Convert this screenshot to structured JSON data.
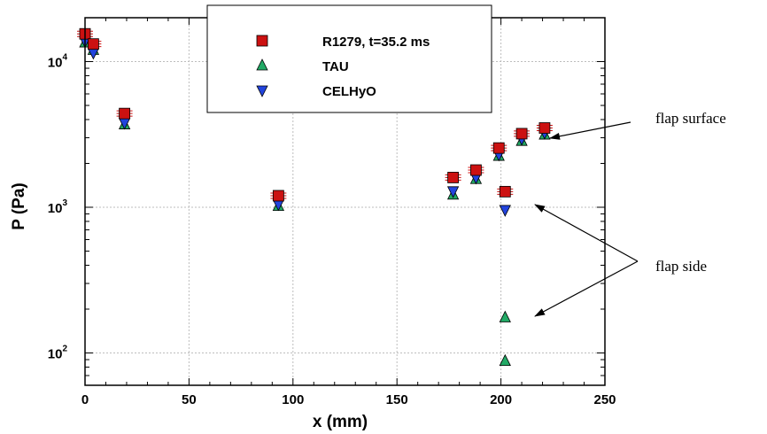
{
  "chart_data": {
    "type": "scatter",
    "xlabel": "x  (mm)",
    "ylabel": "P  (Pa)",
    "xlim": [
      0,
      250
    ],
    "ylim": [
      60,
      20000
    ],
    "yscale": "log",
    "grid": true,
    "legend_position": "top-center",
    "x_ticks": [
      "0",
      "50",
      "100",
      "150",
      "200",
      "250"
    ],
    "y_ticks": [
      {
        "value": 100,
        "base": "10",
        "exp": "2"
      },
      {
        "value": 1000,
        "base": "10",
        "exp": "3"
      },
      {
        "value": 10000,
        "base": "10",
        "exp": "4"
      }
    ],
    "series": [
      {
        "name": "R1279, t=35.2 ms",
        "marker": "square",
        "color": "#cc1111",
        "error_bars": true,
        "points": [
          {
            "x": 0,
            "y": 15500
          },
          {
            "x": 4,
            "y": 13200
          },
          {
            "x": 19,
            "y": 4400
          },
          {
            "x": 93,
            "y": 1200
          },
          {
            "x": 177,
            "y": 1600
          },
          {
            "x": 188,
            "y": 1800
          },
          {
            "x": 199,
            "y": 2550
          },
          {
            "x": 202,
            "y": 1280
          },
          {
            "x": 210,
            "y": 3200
          },
          {
            "x": 221,
            "y": 3500
          }
        ]
      },
      {
        "name": "TAU",
        "marker": "triangle-up",
        "color": "#22aa66",
        "error_bars": false,
        "points": [
          {
            "x": 0,
            "y": 13500
          },
          {
            "x": 4,
            "y": 12000
          },
          {
            "x": 19,
            "y": 3700
          },
          {
            "x": 93,
            "y": 1020
          },
          {
            "x": 177,
            "y": 1220
          },
          {
            "x": 188,
            "y": 1560
          },
          {
            "x": 199,
            "y": 2250
          },
          {
            "x": 202,
            "y": 175
          },
          {
            "x": 202,
            "y": 88
          },
          {
            "x": 210,
            "y": 2850
          },
          {
            "x": 221,
            "y": 3150
          }
        ]
      },
      {
        "name": "CELHyO",
        "marker": "triangle-down",
        "color": "#2244dd",
        "error_bars": false,
        "points": [
          {
            "x": 0,
            "y": 13800
          },
          {
            "x": 4,
            "y": 11500
          },
          {
            "x": 19,
            "y": 3800
          },
          {
            "x": 93,
            "y": 1050
          },
          {
            "x": 177,
            "y": 1290
          },
          {
            "x": 188,
            "y": 1600
          },
          {
            "x": 199,
            "y": 2300
          },
          {
            "x": 202,
            "y": 960
          },
          {
            "x": 210,
            "y": 2950
          },
          {
            "x": 221,
            "y": 3250
          }
        ]
      }
    ],
    "annotations": [
      {
        "text": "flap surface",
        "arrows_to": [
          {
            "x": 221,
            "y": 3300
          }
        ]
      },
      {
        "text": "flap side",
        "arrows_to": [
          {
            "x": 203,
            "y": 1150
          },
          {
            "x": 203,
            "y": 160
          }
        ]
      }
    ]
  }
}
